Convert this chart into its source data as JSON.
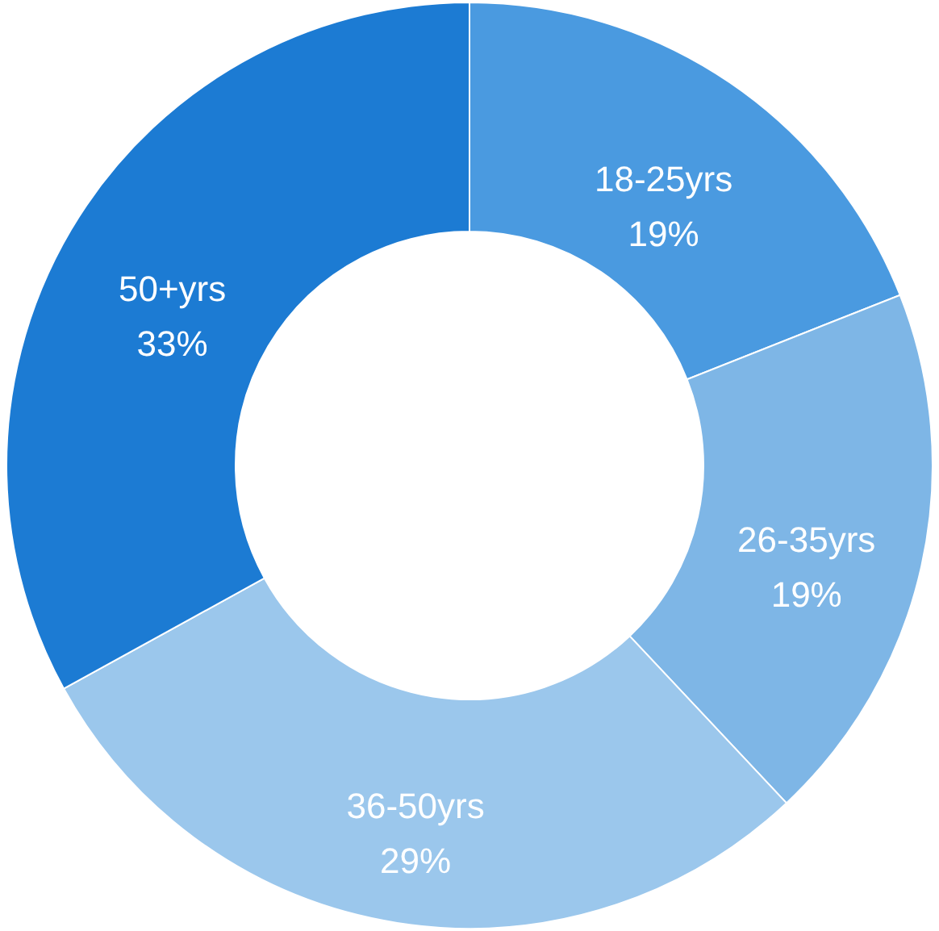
{
  "chart_data": {
    "type": "donut",
    "categories": [
      "18-25yrs",
      "26-35yrs",
      "36-50yrs",
      "50+yrs"
    ],
    "values": [
      19,
      19,
      29,
      33
    ],
    "value_labels": [
      "19%",
      "19%",
      "29%",
      "33%"
    ],
    "colors": [
      "#4a9ae0",
      "#7eb6e6",
      "#9bc7ec",
      "#1c7bd3"
    ]
  }
}
